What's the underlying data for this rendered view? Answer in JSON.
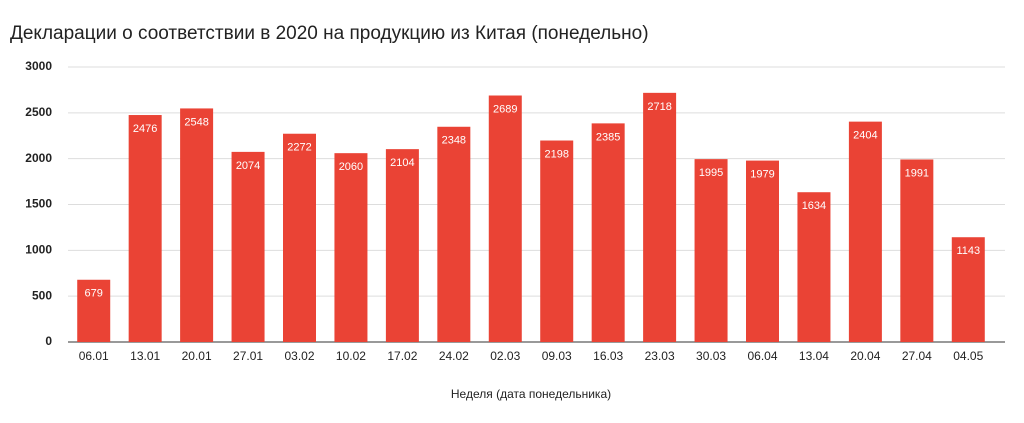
{
  "chart_data": {
    "type": "bar",
    "title": "Декларации о соответствии в 2020 на продукцию из Китая (понедельно)",
    "x_label": "Неделя (дата понедельника)",
    "categories": [
      "06.01",
      "13.01",
      "20.01",
      "27.01",
      "03.02",
      "10.02",
      "17.02",
      "24.02",
      "02.03",
      "09.03",
      "16.03",
      "23.03",
      "30.03",
      "06.04",
      "13.04",
      "20.04",
      "27.04",
      "04.05"
    ],
    "values": [
      679,
      2476,
      2548,
      2074,
      2272,
      2060,
      2104,
      2348,
      2689,
      2198,
      2385,
      2718,
      1995,
      1979,
      1634,
      2404,
      1991,
      1143
    ],
    "color": "#ea4335",
    "ylim": [
      0,
      3000
    ],
    "yticks": [
      0,
      500,
      1000,
      1500,
      2000,
      2500,
      3000
    ],
    "grid": true
  }
}
